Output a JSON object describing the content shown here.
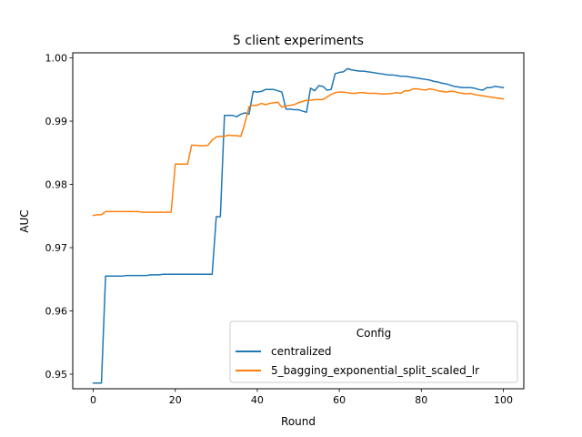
{
  "chart_data": {
    "type": "line",
    "title": "5 client experiments",
    "xlabel": "Round",
    "ylabel": "AUC",
    "xlim": [
      -5,
      105
    ],
    "ylim": [
      0.9477,
      1.0008
    ],
    "xticks": [
      0,
      20,
      40,
      60,
      80,
      100
    ],
    "yticks": [
      0.95,
      0.96,
      0.97,
      0.98,
      0.99,
      1.0
    ],
    "ytick_labels": [
      "0.95",
      "0.96",
      "0.97",
      "0.98",
      "0.99",
      "1.00"
    ],
    "grid": false,
    "legend": {
      "title": "Config",
      "placement": "lower-right"
    },
    "series": [
      {
        "name": "centralized",
        "color": "#1f77b4",
        "x": [
          0,
          1,
          2,
          3,
          4,
          5,
          6,
          7,
          8,
          9,
          10,
          11,
          12,
          13,
          14,
          15,
          16,
          17,
          18,
          19,
          20,
          21,
          22,
          23,
          24,
          25,
          26,
          27,
          28,
          29,
          30,
          31,
          32,
          33,
          34,
          35,
          36,
          37,
          38,
          39,
          40,
          41,
          42,
          43,
          44,
          45,
          46,
          47,
          48,
          49,
          50,
          51,
          52,
          53,
          54,
          55,
          56,
          57,
          58,
          59,
          60,
          61,
          62,
          63,
          64,
          65,
          66,
          67,
          68,
          69,
          70,
          71,
          72,
          73,
          74,
          75,
          76,
          77,
          78,
          79,
          80,
          81,
          82,
          83,
          84,
          85,
          86,
          87,
          88,
          89,
          90,
          91,
          92,
          93,
          94,
          95,
          96,
          97,
          98,
          99,
          100
        ],
        "y": [
          0.9486,
          0.9486,
          0.9486,
          0.9655,
          0.9655,
          0.9655,
          0.9655,
          0.9655,
          0.9656,
          0.9656,
          0.9656,
          0.9656,
          0.9656,
          0.9656,
          0.9657,
          0.9657,
          0.9657,
          0.9658,
          0.9658,
          0.9658,
          0.9658,
          0.9658,
          0.9658,
          0.9658,
          0.9658,
          0.9658,
          0.9658,
          0.9658,
          0.9658,
          0.9658,
          0.9749,
          0.9749,
          0.9909,
          0.9909,
          0.9909,
          0.9907,
          0.9911,
          0.9913,
          0.9911,
          0.9947,
          0.9946,
          0.9947,
          0.995,
          0.995,
          0.995,
          0.9948,
          0.9946,
          0.9919,
          0.9919,
          0.9918,
          0.9918,
          0.9916,
          0.9914,
          0.9952,
          0.9948,
          0.9956,
          0.9955,
          0.9949,
          0.995,
          0.9975,
          0.9977,
          0.9978,
          0.9983,
          0.9981,
          0.998,
          0.9979,
          0.9979,
          0.9978,
          0.9977,
          0.9976,
          0.9975,
          0.9974,
          0.9973,
          0.9973,
          0.9972,
          0.9971,
          0.9971,
          0.997,
          0.9969,
          0.9968,
          0.9967,
          0.9966,
          0.9965,
          0.9963,
          0.9962,
          0.996,
          0.9959,
          0.9957,
          0.9955,
          0.9954,
          0.9953,
          0.9953,
          0.9953,
          0.9952,
          0.995,
          0.9949,
          0.9953,
          0.9953,
          0.9955,
          0.9954,
          0.9953
        ]
      },
      {
        "name": "5_bagging_exponential_split_scaled_lr",
        "color": "#ff7f0e",
        "x": [
          0,
          1,
          2,
          3,
          4,
          5,
          6,
          7,
          8,
          9,
          10,
          11,
          12,
          13,
          14,
          15,
          16,
          17,
          18,
          19,
          20,
          21,
          22,
          23,
          24,
          25,
          26,
          27,
          28,
          29,
          30,
          31,
          32,
          33,
          34,
          35,
          36,
          37,
          38,
          39,
          40,
          41,
          42,
          43,
          44,
          45,
          46,
          47,
          48,
          49,
          50,
          51,
          52,
          53,
          54,
          55,
          56,
          57,
          58,
          59,
          60,
          61,
          62,
          63,
          64,
          65,
          66,
          67,
          68,
          69,
          70,
          71,
          72,
          73,
          74,
          75,
          76,
          77,
          78,
          79,
          80,
          81,
          82,
          83,
          84,
          85,
          86,
          87,
          88,
          89,
          90,
          91,
          92,
          93,
          94,
          95,
          96,
          97,
          98,
          99,
          100
        ],
        "y": [
          0.9751,
          0.9752,
          0.9752,
          0.9757,
          0.9757,
          0.9757,
          0.9757,
          0.9757,
          0.9757,
          0.9757,
          0.9757,
          0.9757,
          0.9756,
          0.9756,
          0.9756,
          0.9756,
          0.9756,
          0.9756,
          0.9756,
          0.9756,
          0.9832,
          0.9832,
          0.9832,
          0.9832,
          0.9862,
          0.9862,
          0.9861,
          0.9861,
          0.9862,
          0.987,
          0.9875,
          0.9876,
          0.9876,
          0.9878,
          0.9877,
          0.9877,
          0.9876,
          0.9897,
          0.9923,
          0.9925,
          0.9925,
          0.9928,
          0.9926,
          0.9928,
          0.9929,
          0.993,
          0.9922,
          0.9924,
          0.9925,
          0.9926,
          0.9929,
          0.9931,
          0.9933,
          0.9933,
          0.9934,
          0.9934,
          0.9934,
          0.9938,
          0.9942,
          0.9945,
          0.9946,
          0.9946,
          0.9945,
          0.9944,
          0.9944,
          0.9945,
          0.9945,
          0.9944,
          0.9944,
          0.9944,
          0.9943,
          0.9943,
          0.9943,
          0.9944,
          0.9945,
          0.9944,
          0.9948,
          0.9948,
          0.9951,
          0.9951,
          0.995,
          0.9949,
          0.9951,
          0.995,
          0.9948,
          0.9947,
          0.9946,
          0.9947,
          0.9947,
          0.9945,
          0.9944,
          0.9943,
          0.9944,
          0.9942,
          0.9941,
          0.994,
          0.9939,
          0.9938,
          0.9937,
          0.9936,
          0.9935
        ]
      }
    ]
  }
}
